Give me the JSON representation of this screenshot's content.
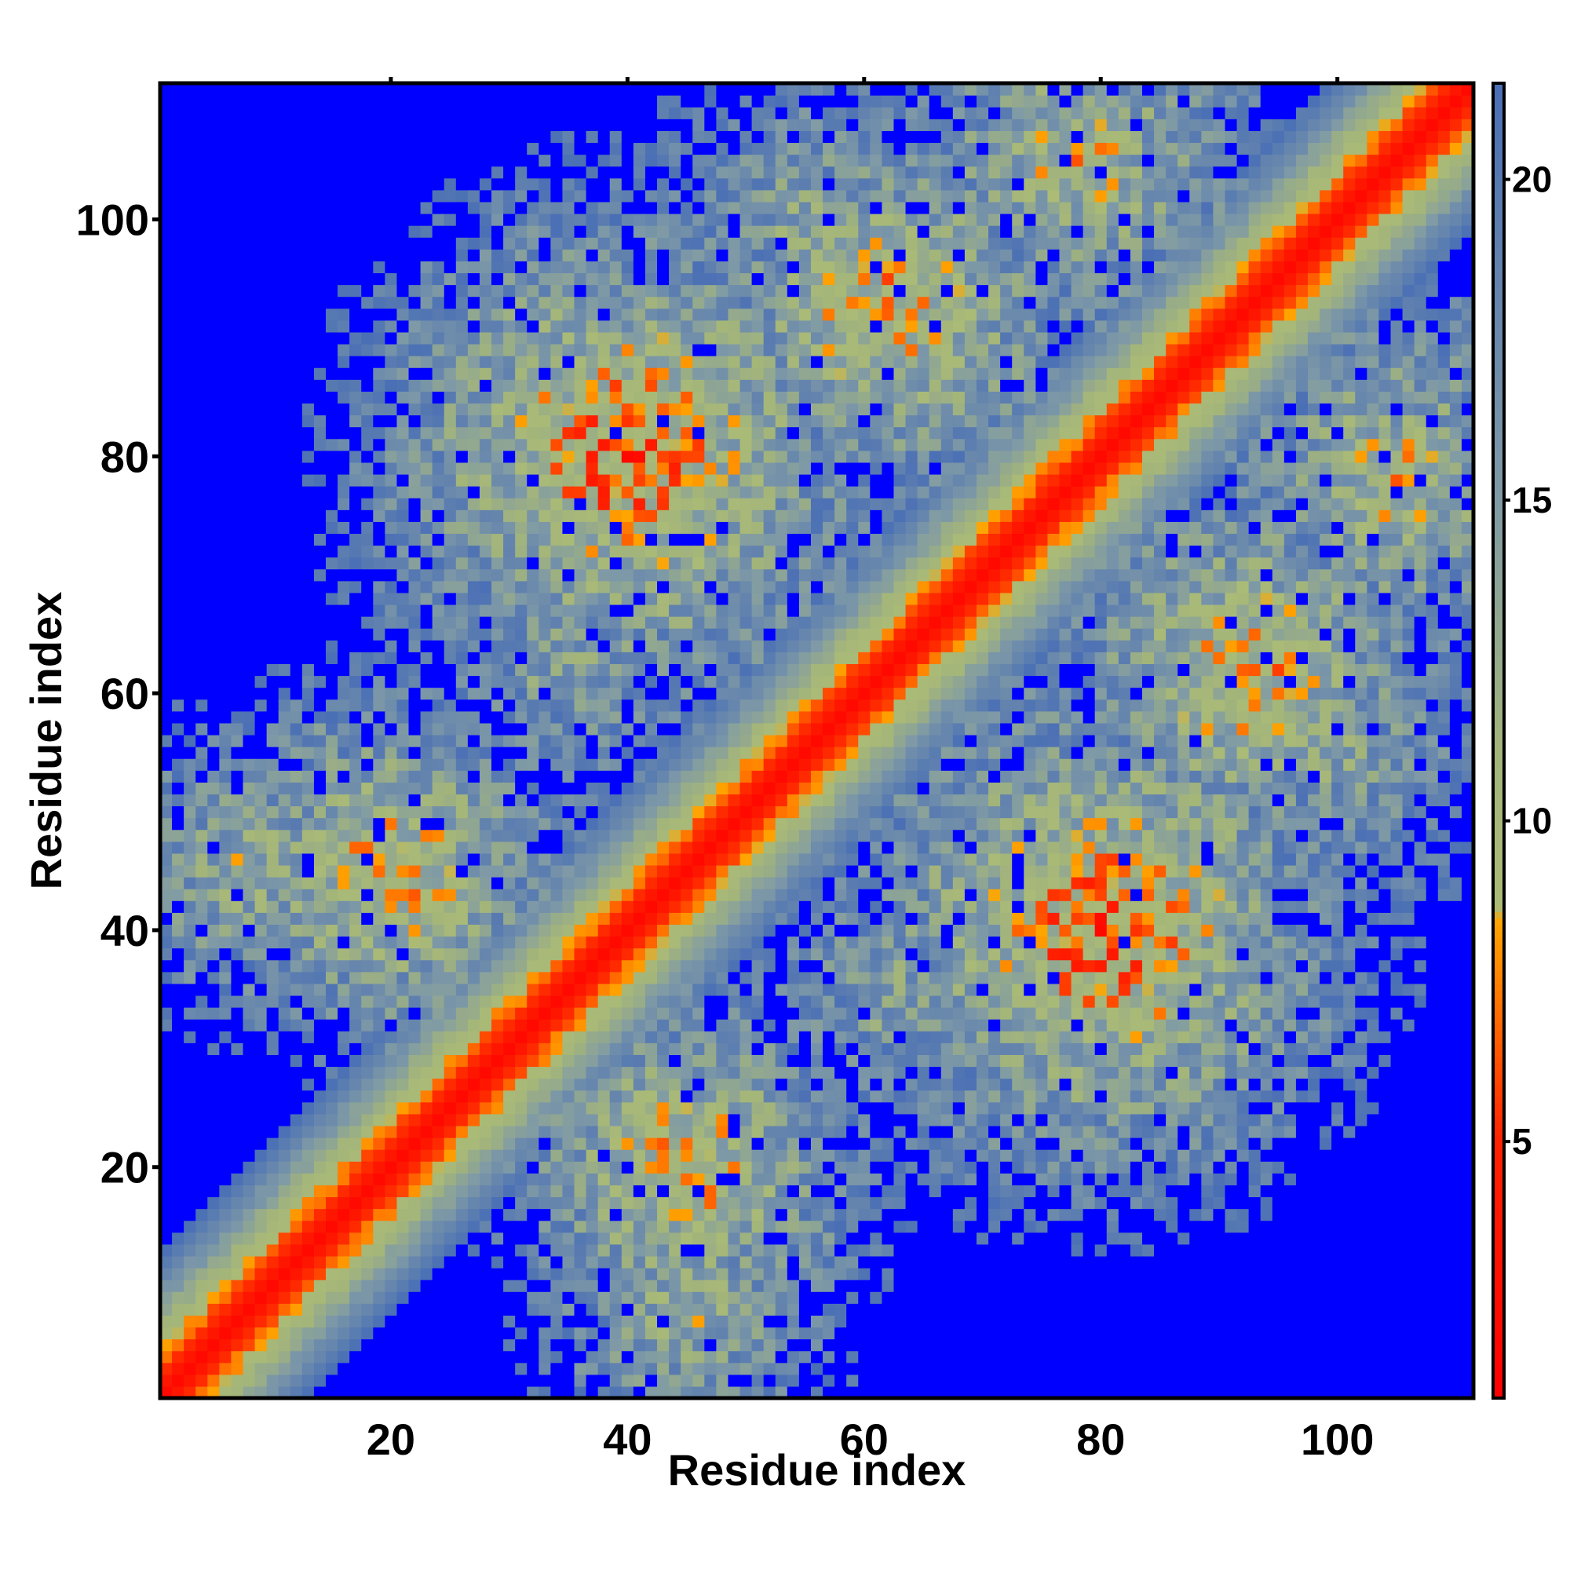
{
  "chart_data": {
    "type": "heatmap",
    "xlabel": "Residue index",
    "ylabel": "Residue index",
    "n_residues": 111,
    "xlim": [
      1,
      111
    ],
    "ylim": [
      1,
      111
    ],
    "x_ticks": [
      20,
      40,
      60,
      80,
      100
    ],
    "y_ticks": [
      20,
      40,
      60,
      80,
      100
    ],
    "colorbar": {
      "range": [
        1,
        21.5
      ],
      "ticks": [
        5,
        10,
        15,
        20
      ],
      "stops": [
        {
          "value": 1,
          "color": "#ff0000"
        },
        {
          "value": 5,
          "color": "#ff2200"
        },
        {
          "value": 8.4,
          "color": "#ffa500"
        },
        {
          "value": 8.6,
          "color": "#aabb77"
        },
        {
          "value": 11,
          "color": "#a4b57a"
        },
        {
          "value": 15,
          "color": "#7f9aa6"
        },
        {
          "value": 21.5,
          "color": "#4a6fb5"
        }
      ],
      "above_range_color": "#0000ff"
    },
    "description_pattern": {
      "matrix": "symmetric distance map",
      "diagonal_band": "values 1-8 along |i-j|<=4",
      "off_diagonal_contact_regions": [
        {
          "i_center": 40,
          "j_center": 80,
          "strength": "moderate"
        },
        {
          "i_center": 20,
          "j_center": 45,
          "strength": "moderate"
        },
        {
          "i_center": 60,
          "j_center": 90,
          "strength": "moderate"
        },
        {
          "i_center": 75,
          "j_center": 105,
          "strength": "weak"
        },
        {
          "i_center": 10,
          "j_center": 45,
          "strength": "weak"
        }
      ]
    }
  }
}
